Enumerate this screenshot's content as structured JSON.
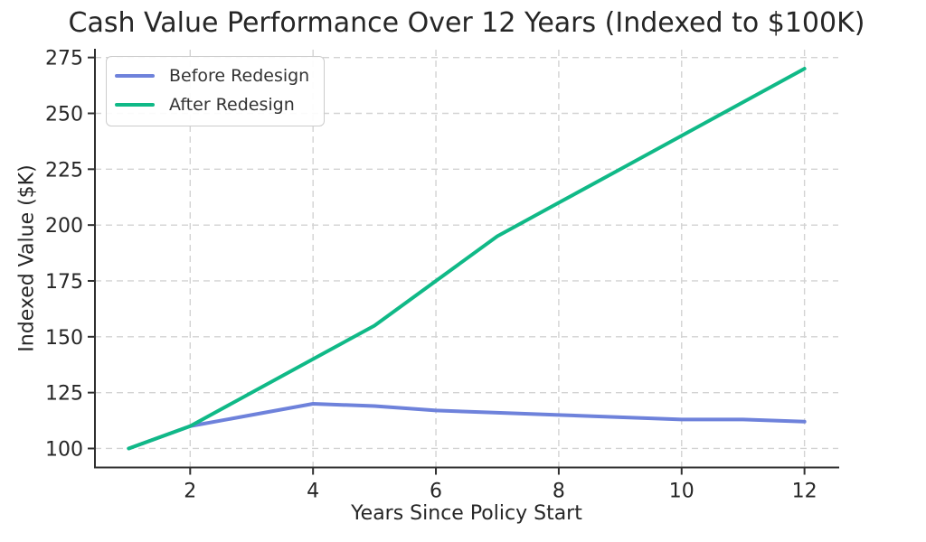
{
  "chart_data": {
    "type": "line",
    "title": "Cash Value Performance Over 12 Years (Indexed to $100K)",
    "xlabel": "Years Since Policy Start",
    "ylabel": "Indexed Value ($K)",
    "x": [
      1,
      2,
      3,
      4,
      5,
      6,
      7,
      8,
      9,
      10,
      11,
      12
    ],
    "series": [
      {
        "name": "Before Redesign",
        "color": "#6e82db",
        "values": [
          100,
          110,
          115,
          120,
          119,
          117,
          116,
          115,
          114,
          113,
          113,
          112
        ]
      },
      {
        "name": "After Redesign",
        "color": "#10b987",
        "values": [
          100,
          110,
          125,
          140,
          155,
          175,
          195,
          210,
          225,
          240,
          255,
          270
        ]
      }
    ],
    "xlim": [
      0.45,
      12.55
    ],
    "ylim": [
      91.5,
      278.5
    ],
    "xticks": [
      2,
      4,
      6,
      8,
      10,
      12
    ],
    "yticks": [
      100,
      125,
      150,
      175,
      200,
      225,
      250,
      275
    ],
    "grid": true,
    "grid_style": "dashed",
    "legend_position": "upper-left"
  },
  "appearance": {
    "background": "#ffffff",
    "grid_color": "#d3d3d3",
    "axis_color": "#303030",
    "text_color": "#262626",
    "line_width": 4
  }
}
